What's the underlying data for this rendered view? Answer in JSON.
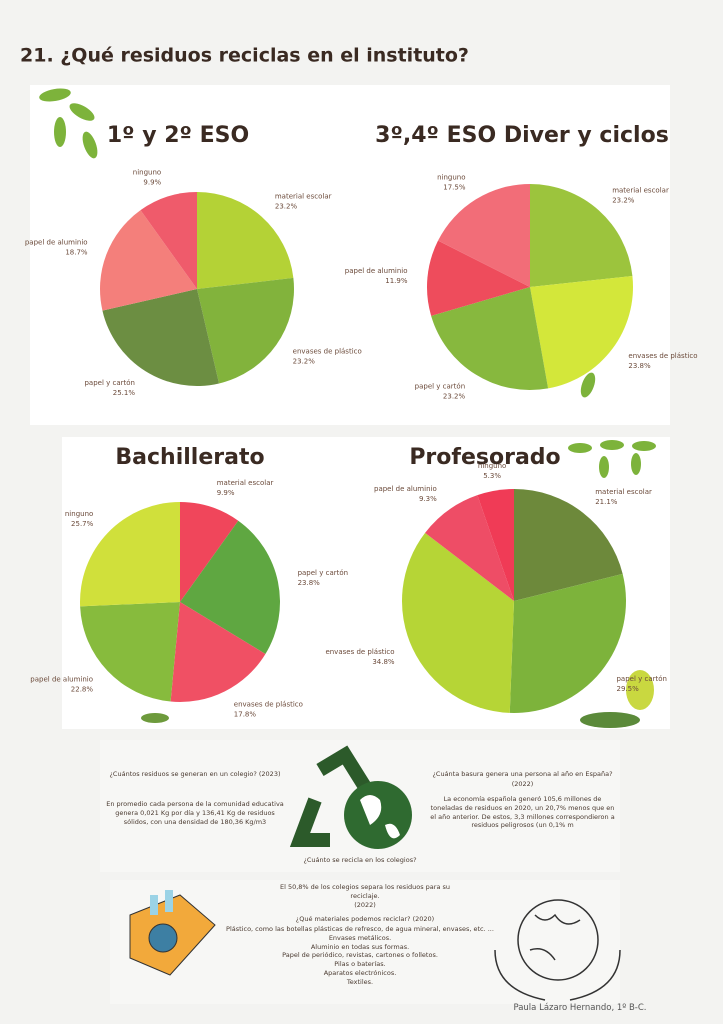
{
  "title": "21. ¿Qué residuos reciclas en el instituto?",
  "chart_data": [
    {
      "type": "pie",
      "title": "1º y 2º ESO",
      "categories": [
        "material escolar",
        "envases de plástico",
        "papel y cartón",
        "papel de aluminio",
        "ninguno"
      ],
      "values": [
        23.2,
        23.2,
        25.1,
        18.7,
        9.9
      ],
      "value_labels": [
        "23.2%",
        "23.2%",
        "25.1%",
        "18.7%",
        "9.9%"
      ],
      "colors": [
        "#b4d236",
        "#82b33c",
        "#6c8e42",
        "#f47f7b",
        "#ef5b6b"
      ]
    },
    {
      "type": "pie",
      "title": "3º,4º ESO  Diver y ciclos",
      "categories": [
        "material escolar",
        "envases de plástico",
        "papel y cartón",
        "papel de aluminio",
        "ninguno"
      ],
      "values": [
        23.2,
        23.8,
        23.2,
        11.9,
        17.5
      ],
      "value_labels": [
        "23.2%",
        "23.8%",
        "23.2%",
        "11.9%",
        "17.5%"
      ],
      "colors": [
        "#9cc43d",
        "#d3e73a",
        "#87b83e",
        "#ee4c5c",
        "#f26d78"
      ]
    },
    {
      "type": "pie",
      "title": "Bachillerato",
      "categories": [
        "material escolar",
        "papel y cartón",
        "envases de plástico",
        "papel de aluminio",
        "ninguno"
      ],
      "values": [
        9.9,
        23.8,
        17.8,
        22.8,
        25.7
      ],
      "value_labels": [
        "9.9%",
        "23.8%",
        "17.8%",
        "22.8%",
        "25.7%"
      ],
      "colors": [
        "#f0465b",
        "#5fa741",
        "#f05064",
        "#87bb3d",
        "#d0e03b"
      ]
    },
    {
      "type": "pie",
      "title": "Profesorado",
      "categories": [
        "material escolar",
        "papel y cartón",
        "envases de plástico",
        "papel de aluminio",
        "ninguno"
      ],
      "values": [
        21.1,
        29.5,
        34.8,
        9.3,
        5.3
      ],
      "value_labels": [
        "21.1%",
        "29.5%",
        "34.8%",
        "9.3%",
        "5.3%"
      ],
      "colors": [
        "#6d893b",
        "#7db33b",
        "#b6d536",
        "#ee4d66",
        "#f03b56"
      ]
    }
  ],
  "info": {
    "left_question": "¿Cuántos residuos se generan en un colegio? (2023)",
    "left_text": "En promedio cada persona de la comunidad educativa genera 0,021 Kg por día y 136,41 Kg de residuos sólidos, con una densidad de 180,36 Kg/m3",
    "right_question": "¿Cuánta basura genera una persona al año en España?",
    "right_year": "(2022)",
    "right_text": "La economía española generó 105,6 millones de toneladas de residuos en 2020, un 20,7% menos que en el año anterior. De estos, 3,3 millones correspondieron a residuos peligrosos (un 0,1% m",
    "center_question": "¿Cuánto se recicla en los colegios?",
    "schools_text": "El 50,8% de los colegios separa los residuos para su reciclaje.",
    "schools_year": "(2022)",
    "materials_question": "¿Qué materiales podemos reciclar? (2020)",
    "materials": [
      "Plástico, como las botellas plásticas de refresco, de agua mineral, envases, etc. ...",
      "Envases metálicos.",
      "Aluminio en todas sus formas.",
      "Papel de periódico, revistas, cartones o folletos.",
      "Pilas o baterías.",
      "Aparatos electrónicos.",
      "Textiles."
    ]
  },
  "author": "Paula Lázaro Hernando, 1º B-C."
}
